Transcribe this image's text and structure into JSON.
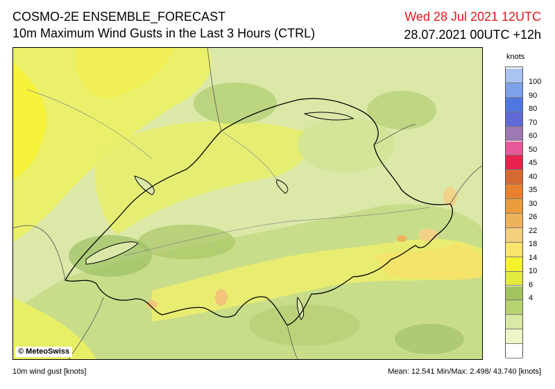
{
  "header": {
    "title": "COSMO-2E ENSEMBLE_FORECAST",
    "subtitle": "10m Maximum Wind Gusts in the Last 3 Hours (CTRL)",
    "valid_time": "Wed 28 Jul 2021 12UTC",
    "run_info": "28.07.2021 00UTC +12h"
  },
  "map": {
    "copyright": "© MeteoSwiss",
    "region": "Switzerland",
    "colors": {
      "background_light_green": "#dbe8a8",
      "yellow_green": "#eaf06a",
      "yellow": "#f6f23a",
      "mid_green": "#b4cf74",
      "green_dark": "#9cc064",
      "orange_tan": "#f2d289",
      "border_line": "#000000",
      "river_line": "#8a8a8a"
    }
  },
  "legend": {
    "unit": "knots",
    "ticks": [
      "100",
      "90",
      "80",
      "70",
      "60",
      "50",
      "45",
      "40",
      "35",
      "30",
      "26",
      "22",
      "18",
      "14",
      "10",
      "6",
      "4"
    ],
    "colors": [
      "#ffffff",
      "#eef6c8",
      "#d7e9a2",
      "#b6d36f",
      "#a3c35c",
      "#e3ec3c",
      "#f5f12a",
      "#fbe56d",
      "#f4cf7e",
      "#eeb25b",
      "#eb9c3c",
      "#e9812e",
      "#d76a33",
      "#e8214d",
      "#e65a99",
      "#9d79b1",
      "#5f6ad6",
      "#4f77e0",
      "#7ea1ec",
      "#a9c4f3"
    ]
  },
  "footer": {
    "left": "10m wind gust [knots]",
    "stats": "Mean:  12.541 Min/Max:  2.498/ 43.740 [knots]"
  }
}
